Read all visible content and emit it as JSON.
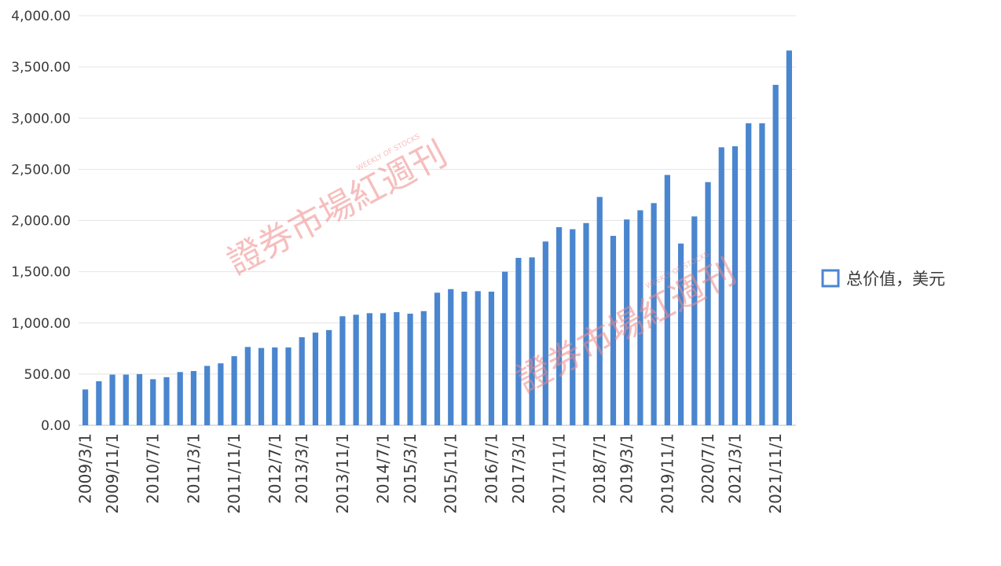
{
  "chart_data": {
    "type": "bar",
    "title": "",
    "xlabel": "",
    "ylabel": "",
    "ylim": [
      0,
      4000
    ],
    "yticks": [
      "0.00",
      "500.00",
      "1,000.00",
      "1,500.00",
      "2,000.00",
      "2,500.00",
      "3,000.00",
      "3,500.00",
      "4,000.00"
    ],
    "yticks_values": [
      0,
      500,
      1000,
      1500,
      2000,
      2500,
      3000,
      3500,
      4000
    ],
    "grid": true,
    "legend_position": "right",
    "colors": {
      "bar": "#4a86cf"
    },
    "x_tick_labels": [
      {
        "index": 0,
        "label": "2009/3/1"
      },
      {
        "index": 2,
        "label": "2009/11/1"
      },
      {
        "index": 5,
        "label": "2010/7/1"
      },
      {
        "index": 8,
        "label": "2011/3/1"
      },
      {
        "index": 11,
        "label": "2011/11/1"
      },
      {
        "index": 14,
        "label": "2012/7/1"
      },
      {
        "index": 16,
        "label": "2013/3/1"
      },
      {
        "index": 19,
        "label": "2013/11/1"
      },
      {
        "index": 22,
        "label": "2014/7/1"
      },
      {
        "index": 24,
        "label": "2015/3/1"
      },
      {
        "index": 27,
        "label": "2015/11/1"
      },
      {
        "index": 30,
        "label": "2016/7/1"
      },
      {
        "index": 32,
        "label": "2017/3/1"
      },
      {
        "index": 35,
        "label": "2017/11/1"
      },
      {
        "index": 38,
        "label": "2018/7/1"
      },
      {
        "index": 40,
        "label": "2019/3/1"
      },
      {
        "index": 43,
        "label": "2019/11/1"
      },
      {
        "index": 46,
        "label": "2020/7/1"
      },
      {
        "index": 48,
        "label": "2021/3/1"
      },
      {
        "index": 51,
        "label": "2021/11/1"
      }
    ],
    "series": [
      {
        "name": "总价值，美元",
        "values": [
          350,
          430,
          495,
          495,
          500,
          450,
          470,
          520,
          530,
          580,
          605,
          675,
          765,
          755,
          760,
          760,
          860,
          905,
          930,
          1065,
          1080,
          1095,
          1095,
          1105,
          1090,
          1115,
          1295,
          1330,
          1305,
          1310,
          1305,
          1500,
          1635,
          1640,
          1795,
          1935,
          1915,
          1975,
          2230,
          1850,
          2010,
          2100,
          2170,
          2445,
          1775,
          2040,
          2375,
          2715,
          2725,
          2950,
          2950,
          3325,
          3660
        ]
      }
    ]
  },
  "watermarks": [
    {
      "main": "證券市場紅週刊",
      "small_en": "WEEKLY OF STOCKS"
    },
    {
      "main": "證券市場紅週刊",
      "small_en": "WEEKLY OF STOCKS"
    }
  ]
}
